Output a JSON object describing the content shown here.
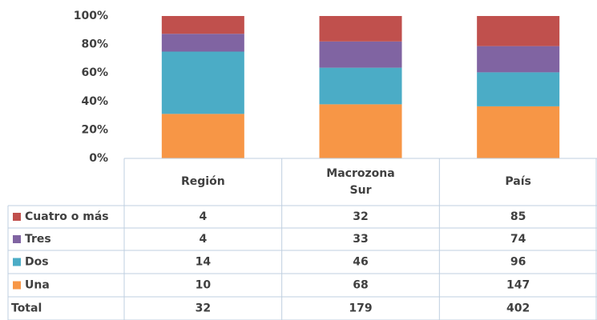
{
  "chart_data": {
    "type": "bar",
    "stacking": "percent",
    "categories": [
      "Región",
      "Macrozona Sur",
      "País"
    ],
    "series": [
      {
        "name": "Cuatro o más",
        "color": "#c0504d",
        "values": [
          4,
          32,
          85
        ]
      },
      {
        "name": "Tres",
        "color": "#8064a2",
        "values": [
          4,
          33,
          74
        ]
      },
      {
        "name": "Dos",
        "color": "#4bacc6",
        "values": [
          14,
          46,
          96
        ]
      },
      {
        "name": "Una",
        "color": "#f79646",
        "values": [
          10,
          68,
          147
        ]
      }
    ],
    "total": {
      "name": "Total",
      "values": [
        32,
        179,
        402
      ]
    },
    "ylim": [
      0,
      100
    ],
    "yticks": [
      {
        "value": 0,
        "label": "0%"
      },
      {
        "value": 20,
        "label": "20%"
      },
      {
        "value": 40,
        "label": "40%"
      },
      {
        "value": 60,
        "label": "60%"
      },
      {
        "value": 80,
        "label": "80%"
      },
      {
        "value": 100,
        "label": "100%"
      }
    ],
    "grid": false
  }
}
